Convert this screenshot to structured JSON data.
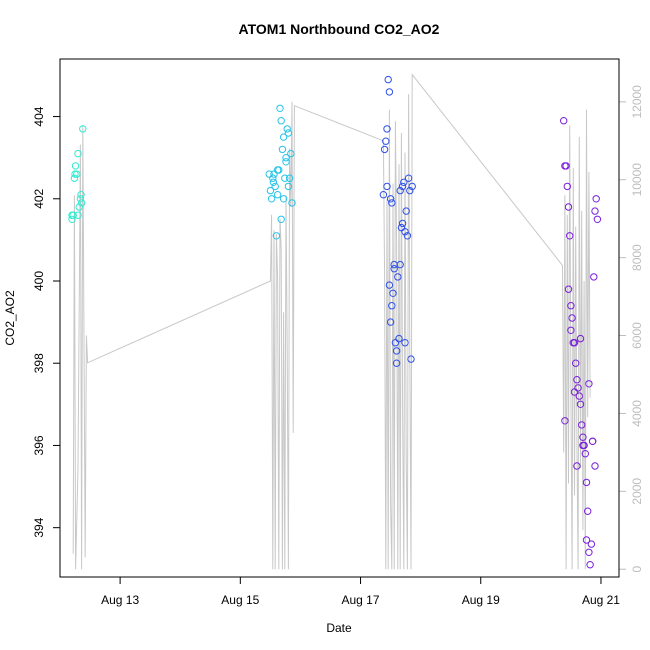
{
  "chart_data": {
    "type": "scatter",
    "title": "ATOM1 Northbound CO2_AO2",
    "xlabel": "Date",
    "ylabel": "CO2_AO2",
    "x_ticks": [
      "Aug 13",
      "Aug 15",
      "Aug 17",
      "Aug 19",
      "Aug 21"
    ],
    "x_tick_days": [
      13,
      15,
      17,
      19,
      21
    ],
    "xlim_days": [
      12.0,
      21.3
    ],
    "ylim": [
      392.8,
      405.4
    ],
    "y_ticks": [
      394,
      396,
      398,
      400,
      402,
      404
    ],
    "y2lim": [
      -200,
      13100
    ],
    "y2_ticks": [
      0,
      2000,
      4000,
      6000,
      8000,
      10000,
      12000
    ],
    "colors": {
      "secondary_series": "#c8c8c8",
      "frame": "#000000",
      "right_axis": "#bdbdbd"
    },
    "scatter_groups": [
      {
        "color": "#33ead1",
        "points": [
          [
            12.2,
            401.5
          ],
          [
            12.22,
            401.6
          ],
          [
            12.24,
            402.5
          ],
          [
            12.26,
            402.8
          ],
          [
            12.28,
            402.6
          ],
          [
            12.3,
            403.1
          ],
          [
            12.32,
            401.8
          ],
          [
            12.34,
            402.0
          ],
          [
            12.36,
            401.9
          ],
          [
            12.38,
            403.7
          ],
          [
            12.2,
            401.6
          ],
          [
            12.25,
            402.6
          ],
          [
            12.3,
            401.6
          ],
          [
            12.35,
            402.1
          ]
        ]
      },
      {
        "color": "#27c3e8",
        "points": [
          [
            15.48,
            402.6
          ],
          [
            15.5,
            402.2
          ],
          [
            15.52,
            402.0
          ],
          [
            15.54,
            402.5
          ],
          [
            15.56,
            402.6
          ],
          [
            15.58,
            402.3
          ],
          [
            15.6,
            401.1
          ],
          [
            15.62,
            402.7
          ],
          [
            15.64,
            402.7
          ],
          [
            15.66,
            404.2
          ],
          [
            15.68,
            403.9
          ],
          [
            15.7,
            403.2
          ],
          [
            15.72,
            403.5
          ],
          [
            15.74,
            402.5
          ],
          [
            15.76,
            402.9
          ],
          [
            15.78,
            403.7
          ],
          [
            15.8,
            403.6
          ],
          [
            15.82,
            402.5
          ],
          [
            15.84,
            403.1
          ],
          [
            15.86,
            401.9
          ],
          [
            15.68,
            401.5
          ],
          [
            15.72,
            402.0
          ],
          [
            15.76,
            403.0
          ],
          [
            15.8,
            402.3
          ],
          [
            15.55,
            402.4
          ],
          [
            15.62,
            402.1
          ]
        ]
      },
      {
        "color": "#2f51e8",
        "points": [
          [
            17.38,
            402.1
          ],
          [
            17.4,
            403.2
          ],
          [
            17.42,
            403.4
          ],
          [
            17.44,
            403.7
          ],
          [
            17.46,
            404.9
          ],
          [
            17.48,
            404.6
          ],
          [
            17.5,
            402.0
          ],
          [
            17.52,
            401.9
          ],
          [
            17.54,
            399.7
          ],
          [
            17.56,
            400.4
          ],
          [
            17.58,
            398.5
          ],
          [
            17.6,
            398.3
          ],
          [
            17.62,
            400.1
          ],
          [
            17.64,
            398.6
          ],
          [
            17.66,
            400.4
          ],
          [
            17.68,
            401.3
          ],
          [
            17.7,
            402.3
          ],
          [
            17.72,
            402.4
          ],
          [
            17.74,
            398.5
          ],
          [
            17.76,
            401.7
          ],
          [
            17.78,
            401.1
          ],
          [
            17.8,
            402.5
          ],
          [
            17.82,
            402.2
          ],
          [
            17.84,
            398.1
          ],
          [
            17.86,
            402.3
          ],
          [
            17.44,
            402.3
          ],
          [
            17.48,
            399.9
          ],
          [
            17.5,
            399.0
          ],
          [
            17.52,
            399.4
          ],
          [
            17.56,
            400.3
          ],
          [
            17.6,
            398.0
          ],
          [
            17.66,
            402.2
          ],
          [
            17.7,
            401.4
          ],
          [
            17.74,
            401.2
          ]
        ]
      },
      {
        "color": "#7a1fdc",
        "points": [
          [
            20.38,
            403.9
          ],
          [
            20.4,
            402.8
          ],
          [
            20.42,
            402.8
          ],
          [
            20.44,
            402.3
          ],
          [
            20.46,
            401.8
          ],
          [
            20.48,
            401.1
          ],
          [
            20.5,
            399.4
          ],
          [
            20.52,
            399.1
          ],
          [
            20.54,
            398.5
          ],
          [
            20.56,
            398.5
          ],
          [
            20.58,
            398.0
          ],
          [
            20.6,
            397.6
          ],
          [
            20.62,
            397.4
          ],
          [
            20.64,
            397.2
          ],
          [
            20.66,
            397.0
          ],
          [
            20.68,
            396.5
          ],
          [
            20.7,
            396.2
          ],
          [
            20.72,
            396.0
          ],
          [
            20.74,
            395.8
          ],
          [
            20.76,
            395.1
          ],
          [
            20.78,
            394.4
          ],
          [
            20.8,
            393.4
          ],
          [
            20.82,
            393.1
          ],
          [
            20.84,
            393.6
          ],
          [
            20.86,
            396.1
          ],
          [
            20.88,
            400.1
          ],
          [
            20.9,
            401.7
          ],
          [
            20.92,
            402.0
          ],
          [
            20.94,
            401.5
          ],
          [
            20.4,
            396.6
          ],
          [
            20.46,
            399.8
          ],
          [
            20.5,
            398.8
          ],
          [
            20.56,
            397.3
          ],
          [
            20.6,
            395.5
          ],
          [
            20.66,
            398.6
          ],
          [
            20.7,
            396.0
          ],
          [
            20.76,
            393.7
          ],
          [
            20.8,
            397.5
          ],
          [
            20.86,
            396.1
          ],
          [
            20.9,
            395.5
          ]
        ]
      }
    ],
    "secondary_series": {
      "name": "",
      "points": [
        [
          12.22,
          400
        ],
        [
          12.24,
          9600
        ],
        [
          12.26,
          0
        ],
        [
          12.3,
          2600
        ],
        [
          12.34,
          10900
        ],
        [
          12.36,
          0
        ],
        [
          12.38,
          11400
        ],
        [
          12.42,
          300
        ],
        [
          12.44,
          6000
        ],
        [
          12.46,
          5300
        ],
        [
          15.5,
          7400
        ],
        [
          15.52,
          9100
        ],
        [
          15.54,
          0
        ],
        [
          15.56,
          8700
        ],
        [
          15.58,
          0
        ],
        [
          15.6,
          8600
        ],
        [
          15.62,
          7500
        ],
        [
          15.64,
          0
        ],
        [
          15.66,
          9000
        ],
        [
          15.68,
          8200
        ],
        [
          15.7,
          0
        ],
        [
          15.72,
          6600
        ],
        [
          15.74,
          0
        ],
        [
          15.76,
          9600
        ],
        [
          15.78,
          5600
        ],
        [
          15.8,
          0
        ],
        [
          15.82,
          10800
        ],
        [
          15.84,
          9300
        ],
        [
          15.86,
          12000
        ],
        [
          15.88,
          3500
        ],
        [
          15.9,
          11900
        ],
        [
          17.38,
          11000
        ],
        [
          17.4,
          7500
        ],
        [
          17.42,
          0
        ],
        [
          17.44,
          9500
        ],
        [
          17.46,
          0
        ],
        [
          17.48,
          11800
        ],
        [
          17.5,
          1700
        ],
        [
          17.52,
          0
        ],
        [
          17.54,
          9900
        ],
        [
          17.56,
          0
        ],
        [
          17.58,
          11500
        ],
        [
          17.6,
          8400
        ],
        [
          17.62,
          0
        ],
        [
          17.64,
          10400
        ],
        [
          17.66,
          0
        ],
        [
          17.68,
          11200
        ],
        [
          17.7,
          4100
        ],
        [
          17.72,
          0
        ],
        [
          17.74,
          10700
        ],
        [
          17.76,
          2900
        ],
        [
          17.78,
          0
        ],
        [
          17.8,
          12200
        ],
        [
          17.82,
          5700
        ],
        [
          17.84,
          0
        ],
        [
          17.86,
          12700
        ],
        [
          20.36,
          7800
        ],
        [
          20.38,
          3000
        ],
        [
          20.4,
          9600
        ],
        [
          20.42,
          0
        ],
        [
          20.44,
          9100
        ],
        [
          20.46,
          2200
        ],
        [
          20.48,
          11400
        ],
        [
          20.5,
          4600
        ],
        [
          20.52,
          0
        ],
        [
          20.54,
          10300
        ],
        [
          20.56,
          1900
        ],
        [
          20.58,
          8800
        ],
        [
          20.6,
          3300
        ],
        [
          20.62,
          0
        ],
        [
          20.64,
          11100
        ],
        [
          20.66,
          2600
        ],
        [
          20.68,
          9200
        ],
        [
          20.7,
          1000
        ],
        [
          20.72,
          7400
        ],
        [
          20.74,
          0
        ],
        [
          20.76,
          11800
        ],
        [
          20.78,
          3900
        ],
        [
          20.8,
          10200
        ],
        [
          20.82,
          4400
        ]
      ]
    }
  }
}
